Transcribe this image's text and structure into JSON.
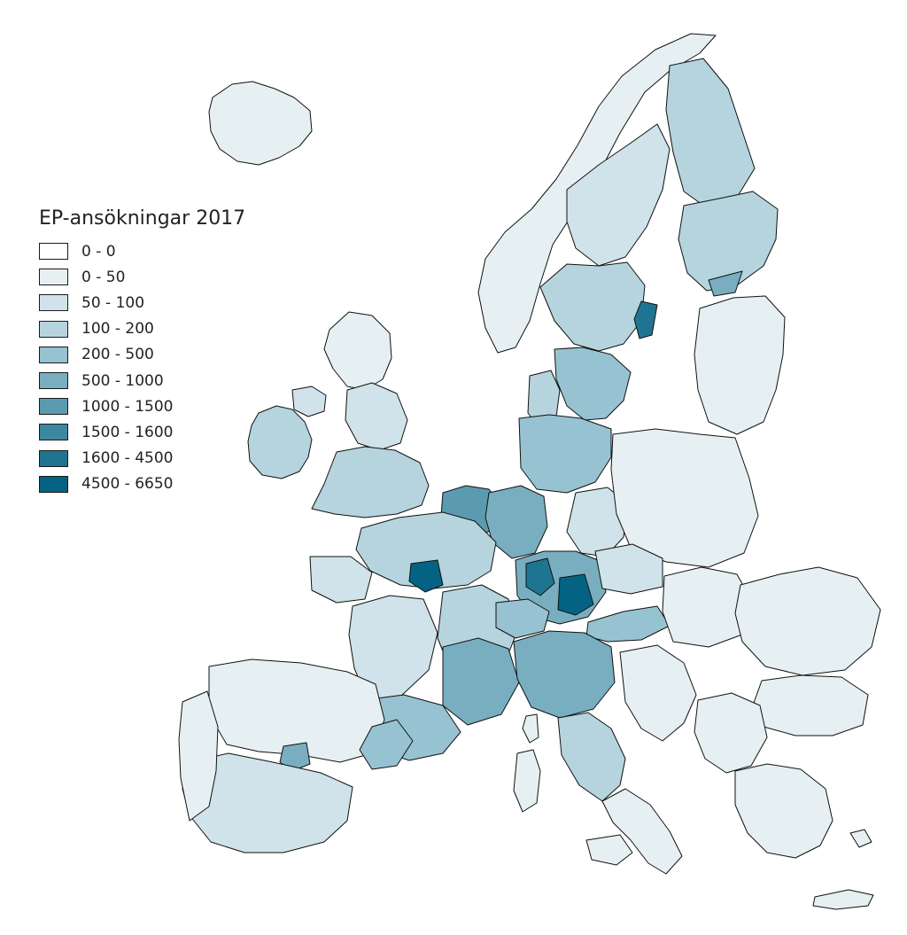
{
  "legend": {
    "title": "EP-ansökningar 2017",
    "classes": [
      {
        "label": "0 - 0",
        "color": "#ffffff"
      },
      {
        "label": "0 - 50",
        "color": "#e6f0f3"
      },
      {
        "label": "50 - 100",
        "color": "#d0e3ea"
      },
      {
        "label": "100 - 200",
        "color": "#b5d4de"
      },
      {
        "label": "200 - 500",
        "color": "#97c2d1"
      },
      {
        "label": "500 - 1000",
        "color": "#78aebf"
      },
      {
        "label": "1000 - 1500",
        "color": "#5a9bb0"
      },
      {
        "label": "1500 - 1600",
        "color": "#3d87a0"
      },
      {
        "label": "1600 - 4500",
        "color": "#1f7591"
      },
      {
        "label": "4500 - 6650",
        "color": "#046383"
      }
    ]
  },
  "colors": {
    "border": "#111111",
    "sea": "#ffffff"
  }
}
